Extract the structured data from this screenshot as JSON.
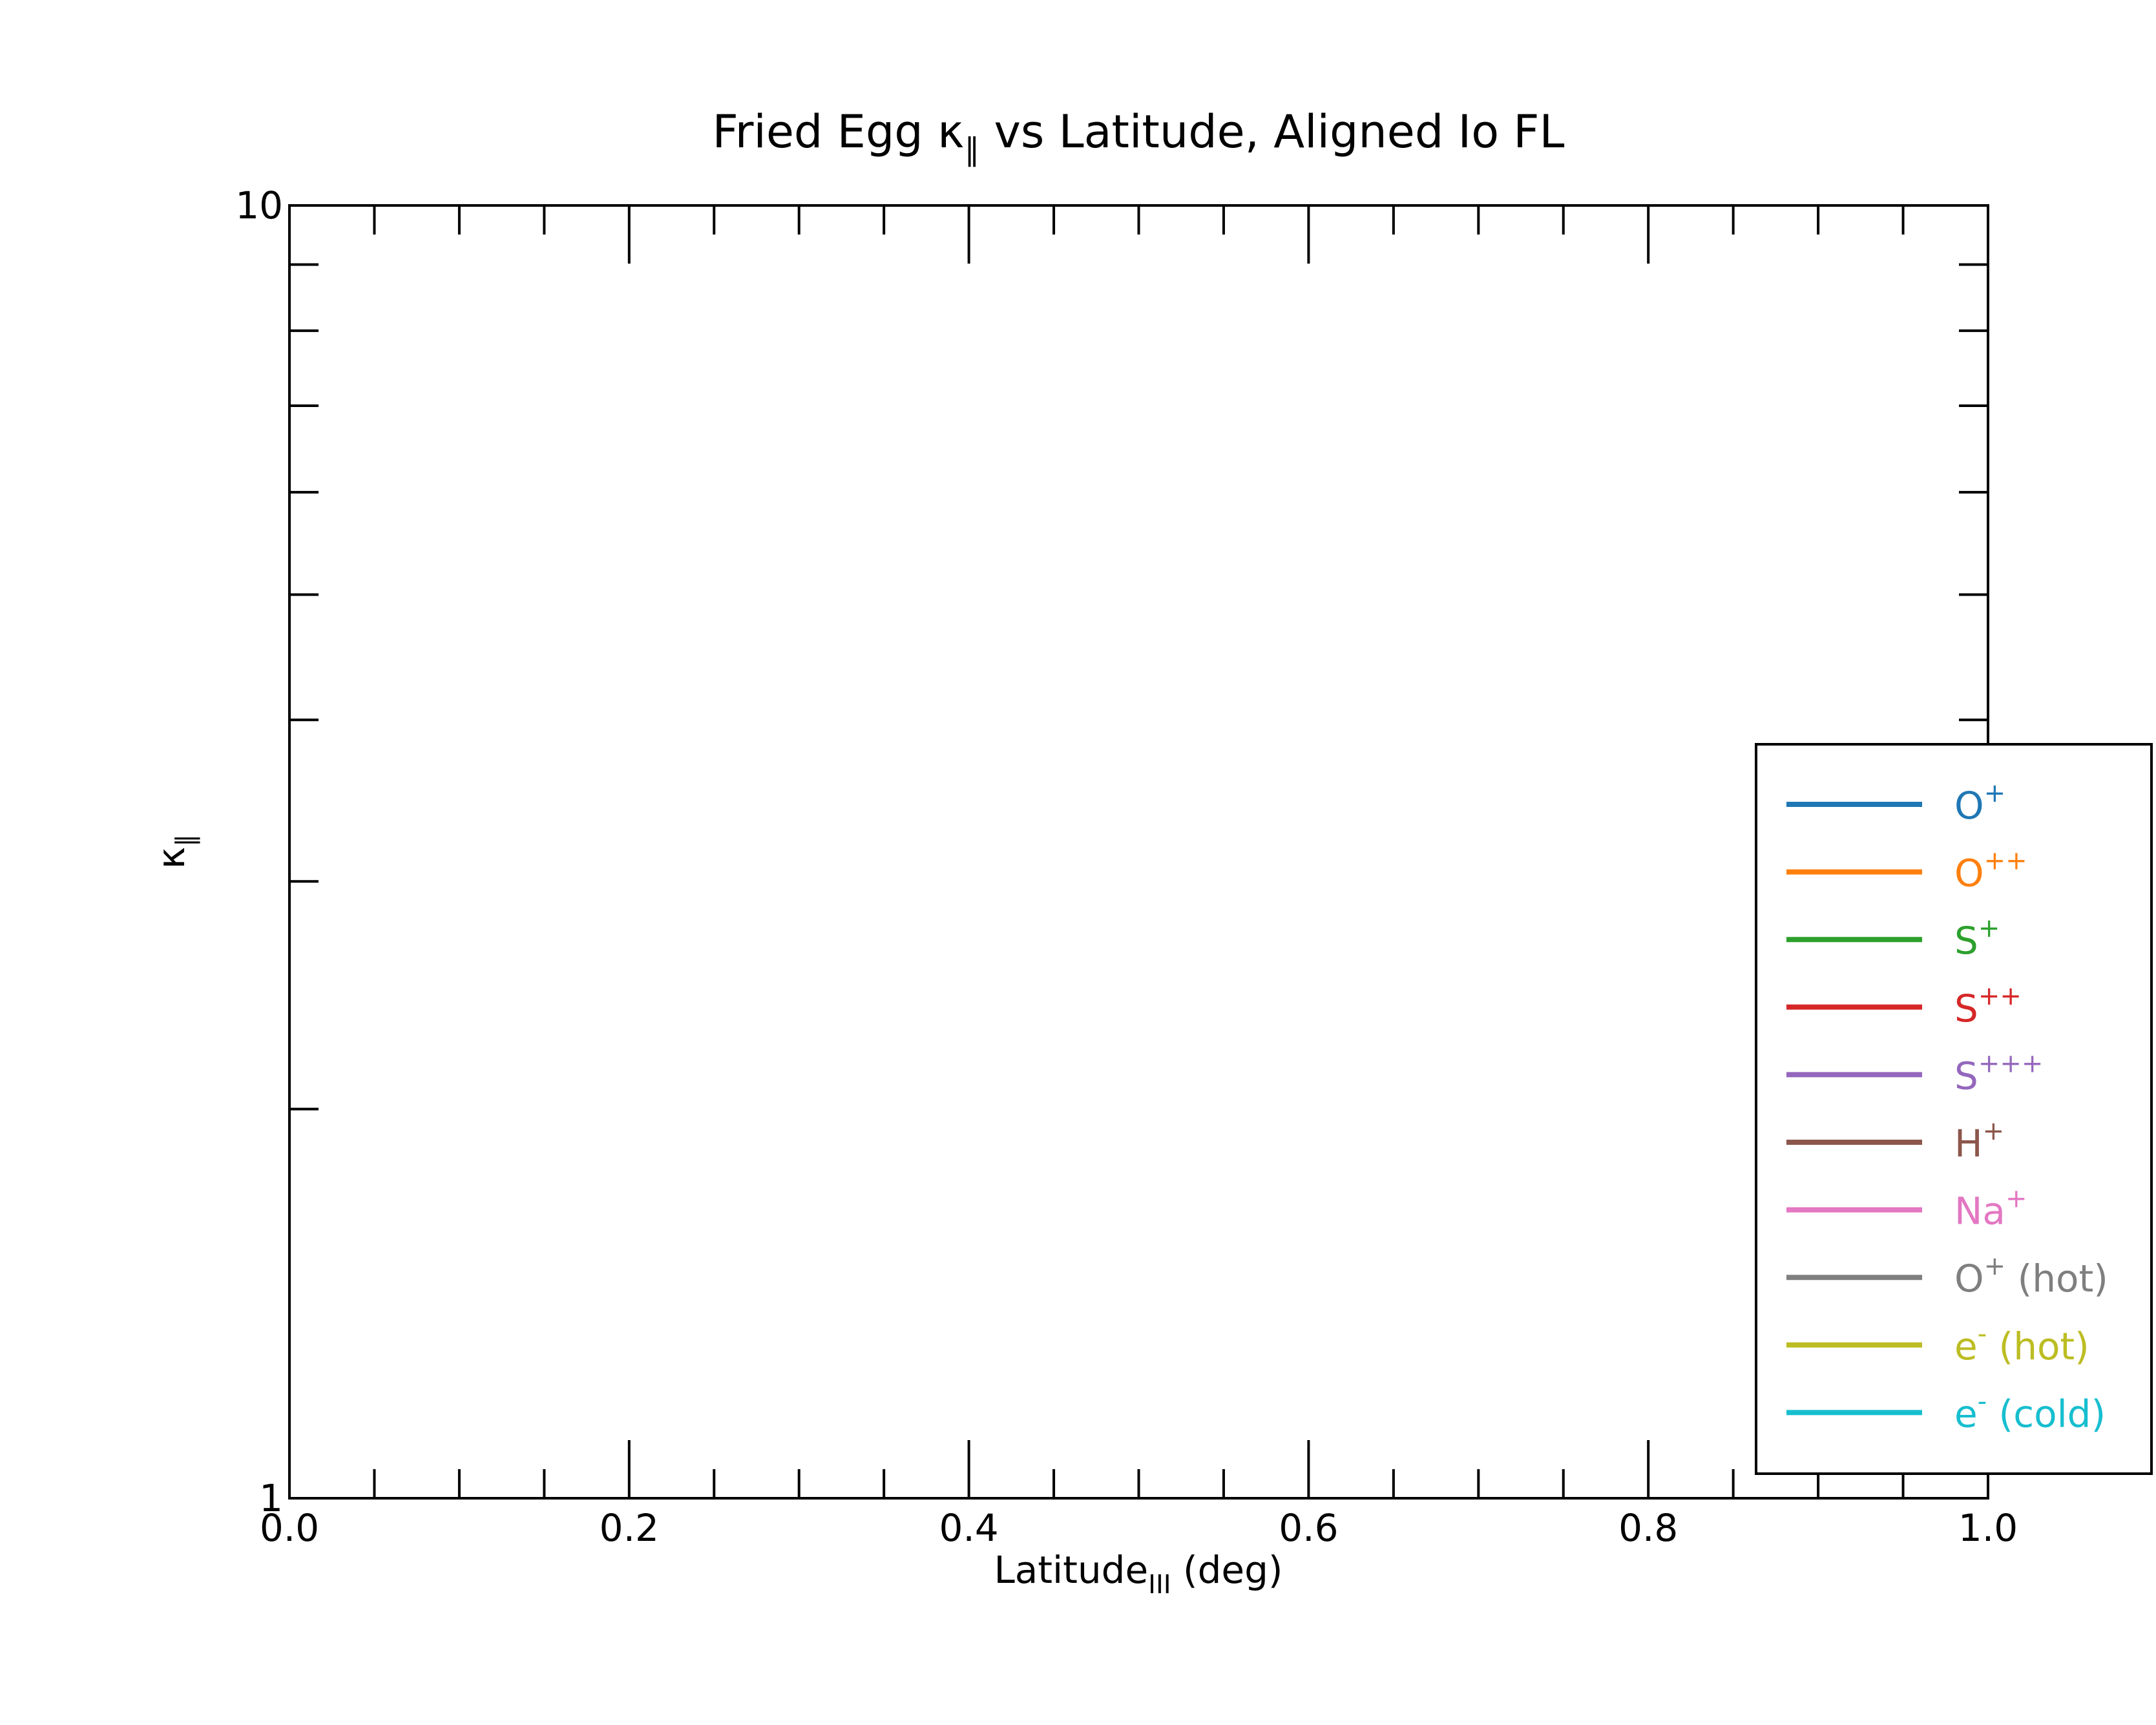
{
  "chart_data": {
    "type": "line",
    "title": {
      "main": "Fried Egg κ",
      "sub": "∥",
      "rest": " vs Latitude, Aligned Io FL"
    },
    "xlabel": {
      "main": "Latitude",
      "sub": "III",
      "rest": " (deg)"
    },
    "ylabel": {
      "main": "κ",
      "sub": "∥"
    },
    "xlim": [
      0.0,
      1.0
    ],
    "ylim": [
      1,
      10
    ],
    "yscale": "log",
    "xticks": [
      "0.0",
      "0.2",
      "0.4",
      "0.6",
      "0.8",
      "1.0"
    ],
    "yticks": [
      "1",
      "10"
    ],
    "grid": false,
    "legend_position": "center-right",
    "series": [
      {
        "base": "O",
        "sup": "+",
        "suffix": "",
        "color": "#1f77b4",
        "values": []
      },
      {
        "base": "O",
        "sup": "++",
        "suffix": "",
        "color": "#ff7f0e",
        "values": []
      },
      {
        "base": "S",
        "sup": "+",
        "suffix": "",
        "color": "#2ca02c",
        "values": []
      },
      {
        "base": "S",
        "sup": "++",
        "suffix": "",
        "color": "#d62728",
        "values": []
      },
      {
        "base": "S",
        "sup": "+++",
        "suffix": "",
        "color": "#9467bd",
        "values": []
      },
      {
        "base": "H",
        "sup": "+",
        "suffix": "",
        "color": "#8c564b",
        "values": []
      },
      {
        "base": "Na",
        "sup": "+",
        "suffix": "",
        "color": "#e377c2",
        "values": []
      },
      {
        "base": "O",
        "sup": "+",
        "suffix": " (hot)",
        "color": "#7f7f7f",
        "values": []
      },
      {
        "base": "e",
        "sup": "-",
        "suffix": " (hot)",
        "color": "#bcbd22",
        "values": []
      },
      {
        "base": "e",
        "sup": "-",
        "suffix": " (cold)",
        "color": "#17becf",
        "values": []
      }
    ]
  }
}
